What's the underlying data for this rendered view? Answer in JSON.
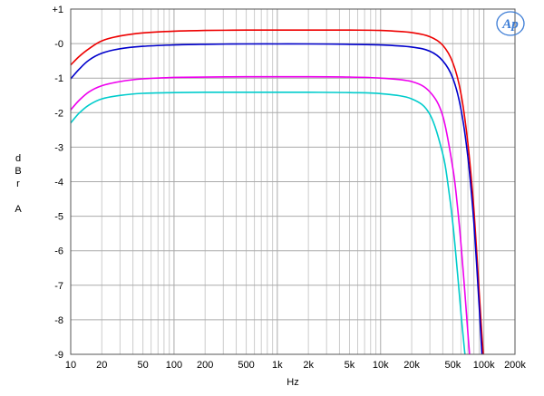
{
  "chart_data": {
    "type": "line",
    "title": "",
    "xlabel": "Hz",
    "ylabel_letters": [
      "d",
      "B",
      "r",
      "",
      "A"
    ],
    "xscale": "log",
    "xlim": [
      10,
      200000
    ],
    "ylim": [
      -9,
      1
    ],
    "grid": true,
    "x_tick_labels": [
      {
        "value": 10,
        "label": "10"
      },
      {
        "value": 20,
        "label": "20"
      },
      {
        "value": 50,
        "label": "50"
      },
      {
        "value": 100,
        "label": "100"
      },
      {
        "value": 200,
        "label": "200"
      },
      {
        "value": 500,
        "label": "500"
      },
      {
        "value": 1000,
        "label": "1k"
      },
      {
        "value": 2000,
        "label": "2k"
      },
      {
        "value": 5000,
        "label": "5k"
      },
      {
        "value": 10000,
        "label": "10k"
      },
      {
        "value": 20000,
        "label": "20k"
      },
      {
        "value": 50000,
        "label": "50k"
      },
      {
        "value": 100000,
        "label": "100k"
      },
      {
        "value": 200000,
        "label": "200k"
      }
    ],
    "y_tick_labels": [
      {
        "value": 1,
        "label": "+1"
      },
      {
        "value": 0,
        "label": "-0"
      },
      {
        "value": -1,
        "label": "-1"
      },
      {
        "value": -2,
        "label": "-2"
      },
      {
        "value": -3,
        "label": "-3"
      },
      {
        "value": -4,
        "label": "-4"
      },
      {
        "value": -5,
        "label": "-5"
      },
      {
        "value": -6,
        "label": "-6"
      },
      {
        "value": -7,
        "label": "-7"
      },
      {
        "value": -8,
        "label": "-8"
      },
      {
        "value": -9,
        "label": "-9"
      }
    ],
    "series": [
      {
        "color": "#ee0000",
        "x": [
          10,
          12,
          15,
          20,
          30,
          50,
          100,
          200,
          500,
          1000,
          2000,
          5000,
          10000,
          20000,
          30000,
          40000,
          50000,
          60000,
          70000,
          80000,
          90000,
          100000
        ],
        "y": [
          -0.62,
          -0.38,
          -0.15,
          0.08,
          0.22,
          0.31,
          0.36,
          0.38,
          0.39,
          0.39,
          0.39,
          0.39,
          0.38,
          0.32,
          0.2,
          -0.05,
          -0.55,
          -1.45,
          -2.9,
          -4.8,
          -7.2,
          -9.3
        ]
      },
      {
        "color": "#0000cc",
        "x": [
          10,
          12,
          15,
          20,
          30,
          50,
          100,
          200,
          500,
          1000,
          2000,
          5000,
          10000,
          20000,
          30000,
          40000,
          50000,
          60000,
          70000,
          80000,
          90000,
          97000
        ],
        "y": [
          -1.02,
          -0.75,
          -0.48,
          -0.28,
          -0.15,
          -0.08,
          -0.04,
          -0.02,
          -0.01,
          -0.01,
          -0.01,
          -0.02,
          -0.04,
          -0.1,
          -0.22,
          -0.5,
          -1.0,
          -1.9,
          -3.3,
          -5.2,
          -7.6,
          -9.3
        ]
      },
      {
        "color": "#ee00ee",
        "x": [
          10,
          12,
          15,
          20,
          30,
          50,
          100,
          200,
          500,
          1000,
          2000,
          5000,
          10000,
          20000,
          30000,
          40000,
          50000,
          55000,
          60000,
          65000,
          70000,
          74000
        ],
        "y": [
          -1.92,
          -1.65,
          -1.4,
          -1.22,
          -1.1,
          -1.02,
          -0.98,
          -0.97,
          -0.96,
          -0.96,
          -0.96,
          -0.97,
          -1.0,
          -1.1,
          -1.4,
          -2.1,
          -3.6,
          -4.6,
          -5.8,
          -7.1,
          -8.4,
          -9.3
        ]
      },
      {
        "color": "#00cccc",
        "x": [
          10,
          12,
          15,
          20,
          30,
          50,
          100,
          200,
          500,
          1000,
          2000,
          5000,
          10000,
          20000,
          30000,
          40000,
          45000,
          50000,
          55000,
          60000,
          65000,
          68000
        ],
        "y": [
          -2.3,
          -2.02,
          -1.78,
          -1.6,
          -1.5,
          -1.44,
          -1.42,
          -1.41,
          -1.41,
          -1.41,
          -1.41,
          -1.42,
          -1.45,
          -1.6,
          -2.05,
          -3.2,
          -4.1,
          -5.2,
          -6.5,
          -7.8,
          -8.9,
          -9.3
        ]
      }
    ]
  },
  "logo": {
    "text": "Ap"
  }
}
